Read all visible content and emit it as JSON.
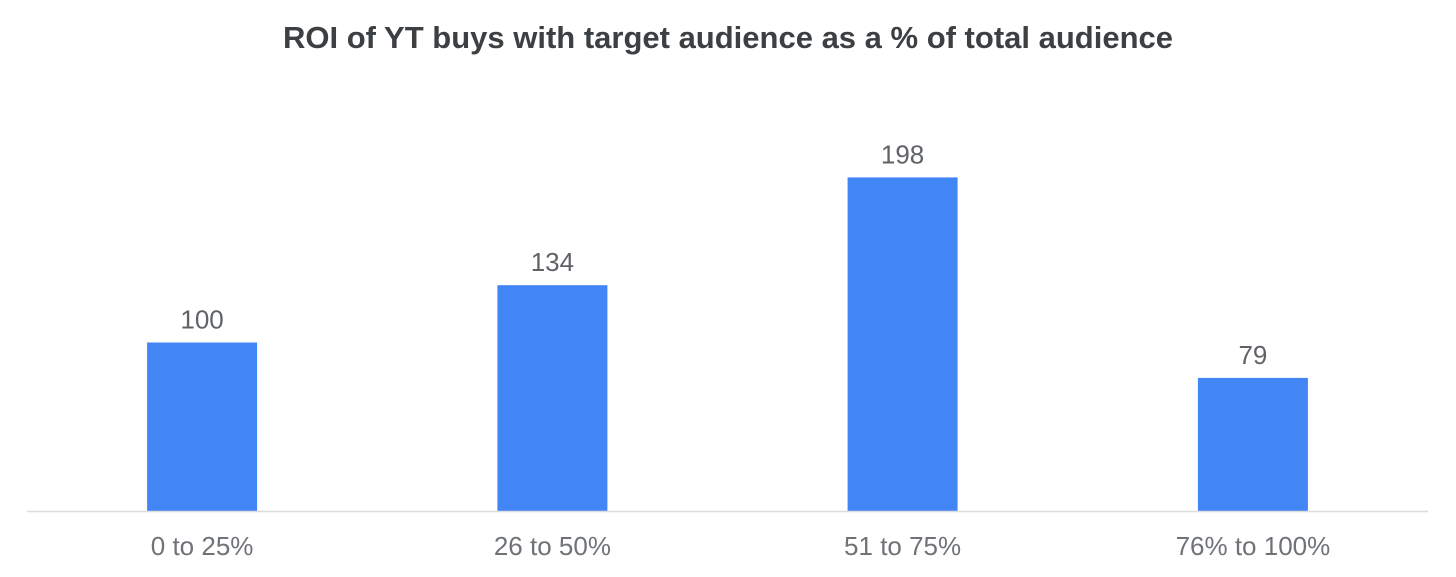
{
  "chart_data": {
    "type": "bar",
    "title": "ROI of YT buys with target audience as a % of total audience",
    "categories": [
      "0 to 25%",
      "26 to 50%",
      "51 to 75%",
      "76% to 100%"
    ],
    "values": [
      100,
      134,
      198,
      79
    ],
    "xlabel": "",
    "ylabel": "",
    "ylim": [
      0,
      200
    ],
    "grid": false,
    "legend": "none",
    "bar_color": "#4285f4",
    "axis_color": "#dadce0"
  }
}
